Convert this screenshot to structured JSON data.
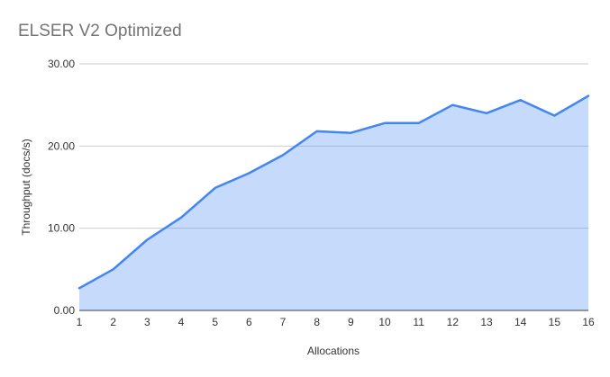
{
  "chart_data": {
    "type": "area",
    "title": "ELSER V2 Optimized",
    "xlabel": "Allocations",
    "ylabel": "Throughput (docs/s)",
    "categories": [
      "1",
      "2",
      "3",
      "4",
      "5",
      "6",
      "7",
      "8",
      "9",
      "10",
      "11",
      "12",
      "13",
      "14",
      "15",
      "16"
    ],
    "values": [
      2.7,
      5.0,
      8.6,
      11.3,
      14.9,
      16.7,
      18.9,
      21.8,
      21.6,
      22.8,
      22.8,
      25.0,
      24.0,
      25.6,
      23.7,
      26.1
    ],
    "ylim": [
      0,
      30
    ],
    "yticks": [
      {
        "value": 0,
        "label": "0.00"
      },
      {
        "value": 10,
        "label": "10.00"
      },
      {
        "value": 20,
        "label": "20.00"
      },
      {
        "value": 30,
        "label": "30.00"
      }
    ],
    "grid": "horizontal",
    "legend": "none",
    "colors": {
      "line": "#4285f4",
      "fill": "rgba(66,133,244,0.3)",
      "gridline": "#cccccc",
      "axis_line": "#333333",
      "tick_text": "#333333",
      "title_text": "#757575"
    }
  }
}
